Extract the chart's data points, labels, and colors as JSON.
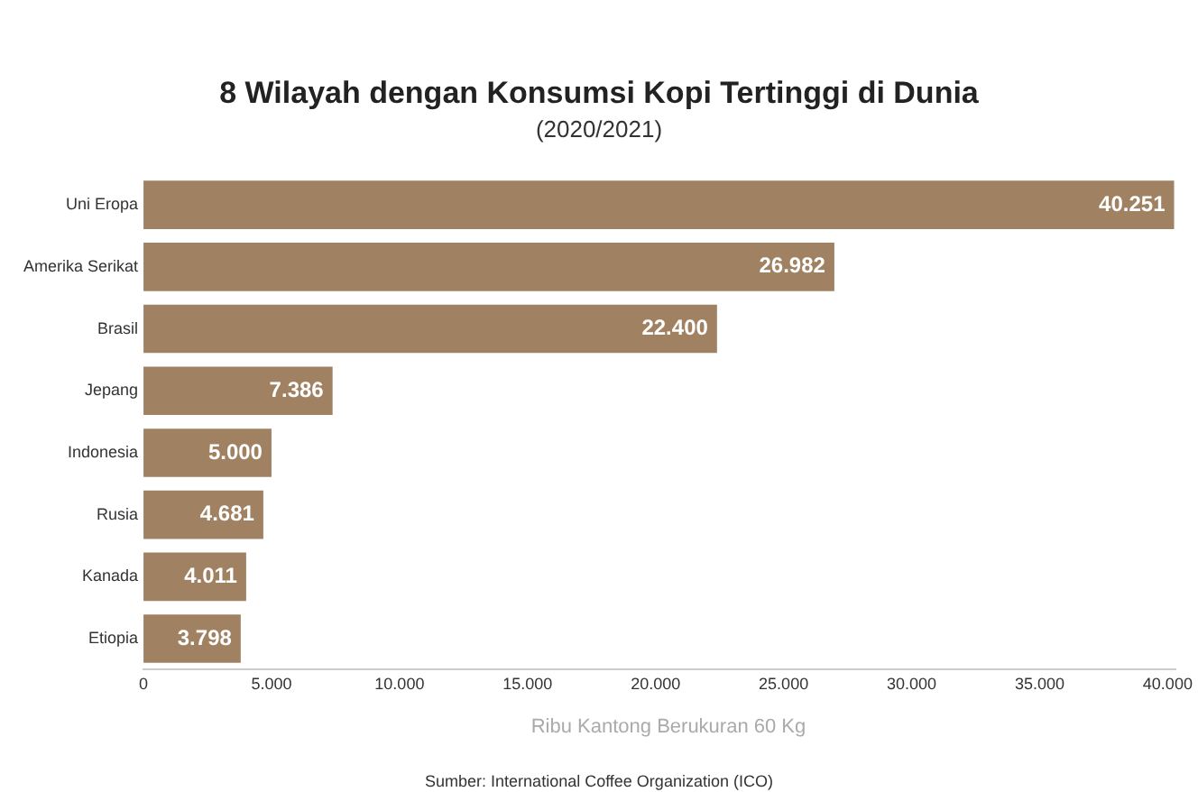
{
  "chart_data": {
    "type": "bar",
    "orientation": "horizontal",
    "title": "8 Wilayah dengan Konsumsi Kopi Tertinggi di Dunia",
    "subtitle": "(2020/2021)",
    "xlabel": "Ribu Kantong Berukuran 60 Kg",
    "categories": [
      "Uni Eropa",
      "Amerika Serikat",
      "Brasil",
      "Jepang",
      "Indonesia",
      "Rusia",
      "Kanada",
      "Etiopia"
    ],
    "values": [
      40251,
      26982,
      22400,
      7386,
      5000,
      4681,
      4011,
      3798
    ],
    "value_labels": [
      "40.251",
      "26.982",
      "22.400",
      "7.386",
      "5.000",
      "4.681",
      "4.011",
      "3.798"
    ],
    "color": "#a08262",
    "xlim": [
      0,
      40300
    ],
    "xticks": [
      0,
      {
        "value": 5000,
        "label": "5.000"
      },
      {
        "value": 10000,
        "label": "10.000"
      },
      {
        "value": 15000,
        "label": "15.000"
      },
      {
        "value": 20000,
        "label": "20.000"
      },
      {
        "value": 25000,
        "label": "25.000"
      },
      {
        "value": 30000,
        "label": "30.000"
      },
      {
        "value": 35000,
        "label": "35.000"
      },
      {
        "value": 40000,
        "label": "40.000"
      }
    ],
    "grid": false,
    "legend": false,
    "annotations": [
      "Sumber: International Coffee Organization (ICO)"
    ]
  }
}
